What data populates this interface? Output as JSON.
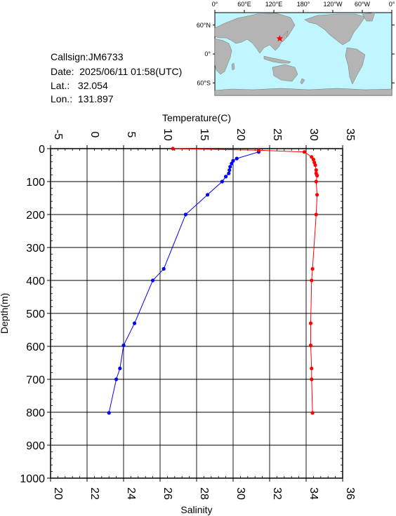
{
  "info": {
    "callsign": "Callsign:JM6733",
    "date": "Date:  2025/06/11 01:58(UTC)",
    "lat": "Lat.:   32.054",
    "lon": "Lon.:  131.897"
  },
  "map": {
    "top_lon_labels": [
      "0°",
      "60°E",
      "120°E",
      "180°",
      "120°W",
      "60°W",
      "0°"
    ],
    "right_lat_labels": [
      "60°N",
      "0°",
      "60°S"
    ],
    "ocean_color": "#bff6ff",
    "land_color": "#b4b4b4",
    "marker_color": "#ff0000",
    "marker_lon": 131.897,
    "marker_lat": 32.054
  },
  "chart_data": {
    "type": "line",
    "ylabel": "Depth(m)",
    "ylim": [
      0,
      1000
    ],
    "y_ticks": [
      "0",
      "100",
      "200",
      "300",
      "400",
      "500",
      "600",
      "700",
      "800",
      "900",
      "1000"
    ],
    "top_axis": {
      "label": "Temperature(C)",
      "range": [
        -5,
        35
      ],
      "ticks": [
        "-5",
        "0",
        "5",
        "10",
        "15",
        "20",
        "25",
        "30",
        "35"
      ]
    },
    "bottom_axis": {
      "label": "Salinity",
      "range": [
        20,
        36
      ],
      "ticks": [
        "20",
        "22",
        "24",
        "26",
        "28",
        "30",
        "32",
        "34",
        "36"
      ]
    },
    "grid": true,
    "series": [
      {
        "axis": "temperature",
        "color": "#0000ff",
        "points": [
          [
            23.5,
            10
          ],
          [
            20.5,
            30
          ],
          [
            20.0,
            37
          ],
          [
            19.8,
            45
          ],
          [
            19.6,
            55
          ],
          [
            19.5,
            65
          ],
          [
            19.4,
            75
          ],
          [
            19.0,
            85
          ],
          [
            18.5,
            100
          ],
          [
            16.5,
            140
          ],
          [
            13.5,
            200
          ],
          [
            10.5,
            365
          ],
          [
            9.0,
            400
          ],
          [
            6.5,
            530
          ],
          [
            5.0,
            597
          ],
          [
            4.5,
            667
          ],
          [
            4.0,
            700
          ],
          [
            3.0,
            802
          ]
        ]
      },
      {
        "axis": "salinity",
        "color": "#ff0000",
        "points": [
          [
            26.7,
            0
          ],
          [
            31.4,
            5
          ],
          [
            33.9,
            10
          ],
          [
            34.3,
            25
          ],
          [
            34.4,
            33
          ],
          [
            34.45,
            42
          ],
          [
            34.5,
            50
          ],
          [
            34.55,
            65
          ],
          [
            34.55,
            75
          ],
          [
            34.6,
            82
          ],
          [
            34.55,
            100
          ],
          [
            34.6,
            140
          ],
          [
            34.55,
            200
          ],
          [
            34.35,
            365
          ],
          [
            34.3,
            400
          ],
          [
            34.25,
            530
          ],
          [
            34.25,
            597
          ],
          [
            34.3,
            667
          ],
          [
            34.3,
            700
          ],
          [
            34.35,
            802
          ]
        ]
      }
    ]
  }
}
